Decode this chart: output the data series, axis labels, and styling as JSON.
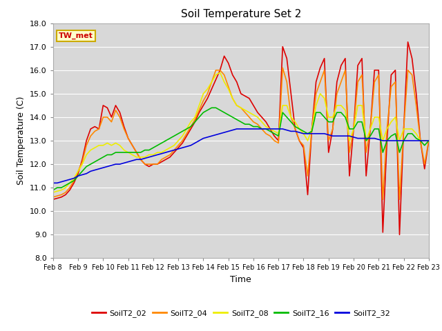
{
  "title": "Soil Temperature Set 2",
  "xlabel": "Time",
  "ylabel": "Soil Temperature (C)",
  "ylim": [
    8.0,
    18.0
  ],
  "yticks": [
    8.0,
    9.0,
    10.0,
    11.0,
    12.0,
    13.0,
    14.0,
    15.0,
    16.0,
    17.0,
    18.0
  ],
  "xtick_labels": [
    "Feb 8",
    "Feb 9",
    "Feb 10",
    "Feb 11",
    "Feb 12",
    "Feb 13",
    "Feb 14",
    "Feb 15",
    "Feb 16",
    "Feb 17",
    "Feb 18",
    "Feb 19",
    "Feb 20",
    "Feb 21",
    "Feb 22",
    "Feb 23"
  ],
  "annotation_text": "TW_met",
  "annotation_color": "#cc0000",
  "annotation_bg": "#ffffcc",
  "annotation_border": "#ccaa00",
  "colors": {
    "SoilT2_02": "#dd0000",
    "SoilT2_04": "#ff8800",
    "SoilT2_08": "#eeee00",
    "SoilT2_16": "#00bb00",
    "SoilT2_32": "#0000dd"
  },
  "figure_bg": "#ffffff",
  "plot_bg": "#d8d8d8",
  "grid_color": "#ffffff",
  "series": {
    "SoilT2_02": [
      10.5,
      10.55,
      10.6,
      10.7,
      10.9,
      11.2,
      11.6,
      12.2,
      13.0,
      13.5,
      13.6,
      13.5,
      14.5,
      14.4,
      14.0,
      14.5,
      14.2,
      13.6,
      13.1,
      12.8,
      12.5,
      12.2,
      12.0,
      11.9,
      12.0,
      12.0,
      12.1,
      12.2,
      12.3,
      12.5,
      12.7,
      12.9,
      13.2,
      13.5,
      13.8,
      14.2,
      14.5,
      14.8,
      15.2,
      15.6,
      16.0,
      16.6,
      16.3,
      15.8,
      15.5,
      15.0,
      14.9,
      14.8,
      14.5,
      14.2,
      14.0,
      13.8,
      13.5,
      13.2,
      13.0,
      17.0,
      16.5,
      15.0,
      13.5,
      13.0,
      12.7,
      10.7,
      13.5,
      15.5,
      16.1,
      16.5,
      12.5,
      13.5,
      15.5,
      16.2,
      16.5,
      11.5,
      13.5,
      16.2,
      16.5,
      11.5,
      13.5,
      16.0,
      16.0,
      9.1,
      13.0,
      15.8,
      16.0,
      9.0,
      13.5,
      17.2,
      16.5,
      15.0,
      13.0,
      11.8,
      13.0
    ],
    "SoilT2_04": [
      10.6,
      10.65,
      10.7,
      10.8,
      11.0,
      11.3,
      11.7,
      12.1,
      12.8,
      13.2,
      13.4,
      13.5,
      14.0,
      14.0,
      13.8,
      14.3,
      14.0,
      13.5,
      13.1,
      12.8,
      12.5,
      12.2,
      12.0,
      12.0,
      12.0,
      12.0,
      12.2,
      12.3,
      12.4,
      12.6,
      12.8,
      13.0,
      13.3,
      13.6,
      13.9,
      14.3,
      14.7,
      15.0,
      15.5,
      16.0,
      16.0,
      15.8,
      15.3,
      14.8,
      14.5,
      14.4,
      14.2,
      14.0,
      13.8,
      13.7,
      13.5,
      13.3,
      13.2,
      13.0,
      12.9,
      16.1,
      15.5,
      14.0,
      13.5,
      13.0,
      12.8,
      11.5,
      13.5,
      15.0,
      15.5,
      16.0,
      13.0,
      13.5,
      15.0,
      15.5,
      16.0,
      12.5,
      13.5,
      15.5,
      15.8,
      12.5,
      13.5,
      15.5,
      15.8,
      10.5,
      13.5,
      15.3,
      15.5,
      10.5,
      13.5,
      16.0,
      15.8,
      14.5,
      13.0,
      12.0,
      13.0
    ],
    "SoilT2_08": [
      10.8,
      10.85,
      10.9,
      11.0,
      11.2,
      11.4,
      11.7,
      12.0,
      12.4,
      12.6,
      12.7,
      12.8,
      12.8,
      12.9,
      12.8,
      12.9,
      12.8,
      12.6,
      12.5,
      12.4,
      12.3,
      12.3,
      12.3,
      12.4,
      12.4,
      12.5,
      12.5,
      12.6,
      12.7,
      12.8,
      13.0,
      13.2,
      13.5,
      13.8,
      14.0,
      14.5,
      15.0,
      15.2,
      15.5,
      15.8,
      15.9,
      15.5,
      15.2,
      14.8,
      14.5,
      14.4,
      14.3,
      14.2,
      14.1,
      14.0,
      13.8,
      13.6,
      13.5,
      13.4,
      13.3,
      14.5,
      14.5,
      14.0,
      13.8,
      13.5,
      13.3,
      13.0,
      13.5,
      14.5,
      15.0,
      14.8,
      14.0,
      14.0,
      14.5,
      14.5,
      14.3,
      13.0,
      13.5,
      14.5,
      14.5,
      13.0,
      13.5,
      14.0,
      14.0,
      13.0,
      13.5,
      13.8,
      14.0,
      13.0,
      13.5,
      13.5,
      13.5,
      13.3,
      13.0,
      13.0,
      13.0
    ],
    "SoilT2_16": [
      10.9,
      11.0,
      11.0,
      11.1,
      11.2,
      11.3,
      11.5,
      11.7,
      11.9,
      12.0,
      12.1,
      12.2,
      12.3,
      12.4,
      12.4,
      12.5,
      12.5,
      12.5,
      12.5,
      12.5,
      12.5,
      12.5,
      12.6,
      12.6,
      12.7,
      12.8,
      12.9,
      13.0,
      13.1,
      13.2,
      13.3,
      13.4,
      13.5,
      13.6,
      13.8,
      14.0,
      14.2,
      14.3,
      14.4,
      14.4,
      14.3,
      14.2,
      14.1,
      14.0,
      13.9,
      13.8,
      13.7,
      13.7,
      13.6,
      13.6,
      13.5,
      13.5,
      13.4,
      13.3,
      13.2,
      14.2,
      14.0,
      13.8,
      13.6,
      13.5,
      13.4,
      13.3,
      13.4,
      14.2,
      14.2,
      14.0,
      13.8,
      13.8,
      14.2,
      14.2,
      14.0,
      13.5,
      13.5,
      13.8,
      13.8,
      13.0,
      13.2,
      13.5,
      13.5,
      12.5,
      13.0,
      13.2,
      13.3,
      12.5,
      13.0,
      13.3,
      13.3,
      13.1,
      13.0,
      12.8,
      13.0
    ],
    "SoilT2_32": [
      11.2,
      11.2,
      11.25,
      11.3,
      11.35,
      11.4,
      11.5,
      11.55,
      11.6,
      11.7,
      11.75,
      11.8,
      11.85,
      11.9,
      11.95,
      12.0,
      12.0,
      12.05,
      12.1,
      12.15,
      12.2,
      12.2,
      12.25,
      12.3,
      12.35,
      12.4,
      12.45,
      12.5,
      12.55,
      12.6,
      12.65,
      12.7,
      12.75,
      12.8,
      12.9,
      13.0,
      13.1,
      13.15,
      13.2,
      13.25,
      13.3,
      13.35,
      13.4,
      13.45,
      13.5,
      13.5,
      13.5,
      13.5,
      13.5,
      13.5,
      13.5,
      13.5,
      13.5,
      13.5,
      13.5,
      13.5,
      13.45,
      13.4,
      13.4,
      13.35,
      13.3,
      13.3,
      13.3,
      13.3,
      13.3,
      13.3,
      13.25,
      13.2,
      13.2,
      13.2,
      13.2,
      13.2,
      13.15,
      13.1,
      13.1,
      13.1,
      13.1,
      13.1,
      13.05,
      13.0,
      13.0,
      13.0,
      13.0,
      13.0,
      13.0,
      13.0,
      13.0,
      13.0,
      13.0,
      13.0,
      13.0
    ]
  }
}
